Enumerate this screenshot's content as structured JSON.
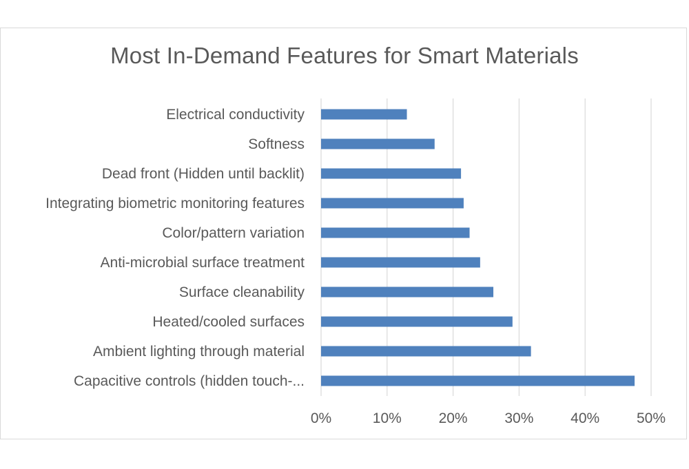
{
  "chart_data": {
    "type": "bar",
    "orientation": "horizontal",
    "title": "Most In-Demand Features for Smart Materials",
    "categories": [
      "Electrical conductivity",
      "Softness",
      "Dead front (Hidden until backlit)",
      "Integrating biometric monitoring features",
      "Color/pattern variation",
      "Anti-microbial surface treatment",
      "Surface cleanability",
      "Heated/cooled surfaces",
      "Ambient lighting through material",
      "Capacitive controls (hidden touch-..."
    ],
    "values": [
      0.13,
      0.172,
      0.212,
      0.216,
      0.225,
      0.241,
      0.261,
      0.29,
      0.318,
      0.475
    ],
    "xlim": [
      0,
      0.5
    ],
    "xticks": [
      0,
      0.1,
      0.2,
      0.3,
      0.4,
      0.5
    ],
    "tick_labels": [
      "0%",
      "10%",
      "20%",
      "30%",
      "40%",
      "50%"
    ],
    "xlabel": "",
    "ylabel": "",
    "grid": "vertical",
    "bar_color": "#4f81bd",
    "grid_color": "#d9d9d9"
  }
}
